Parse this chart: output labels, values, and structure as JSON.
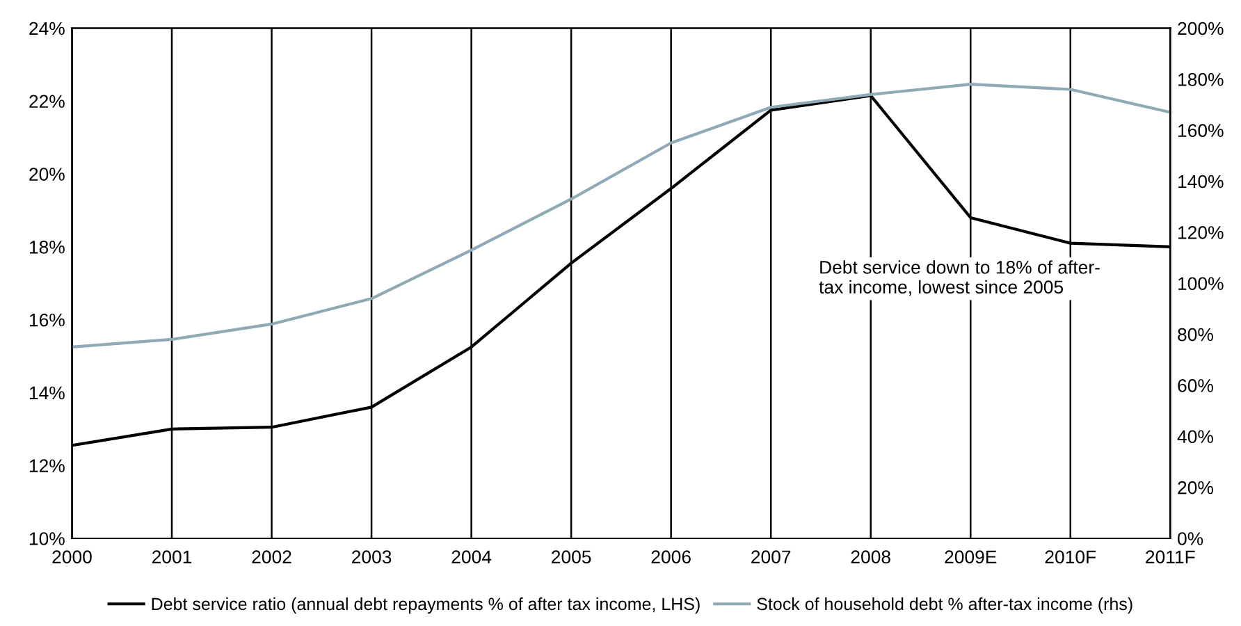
{
  "chart_data": {
    "type": "line",
    "categories": [
      "2000",
      "2001",
      "2002",
      "2003",
      "2004",
      "2005",
      "2006",
      "2007",
      "2008",
      "2009E",
      "2010F",
      "2011F"
    ],
    "series": [
      {
        "name": "Debt service ratio (annual debt repayments % of after tax income, LHS)",
        "color": "#000000",
        "values": [
          12.55,
          13.0,
          13.05,
          13.6,
          15.25,
          17.55,
          19.6,
          21.75,
          22.15,
          18.8,
          18.1,
          18.0
        ]
      },
      {
        "name": "Stock of household debt % after-tax income (rhs)",
        "color": "#8fa9b5",
        "axis": "y2",
        "values": [
          75,
          78,
          84,
          94,
          113,
          133,
          155,
          169,
          174,
          178,
          176,
          167
        ]
      }
    ],
    "ylim": [
      10,
      24
    ],
    "yticks": [
      {
        "value": 10,
        "label": "10%"
      },
      {
        "value": 12,
        "label": "12%"
      },
      {
        "value": 14,
        "label": "14%"
      },
      {
        "value": 16,
        "label": "16%"
      },
      {
        "value": 18,
        "label": "18%"
      },
      {
        "value": 20,
        "label": "20%"
      },
      {
        "value": 22,
        "label": "22%"
      },
      {
        "value": 24,
        "label": "24%"
      }
    ],
    "y2lim": [
      0,
      200
    ],
    "y2ticks": [
      {
        "value": 0,
        "label": "0%"
      },
      {
        "value": 20,
        "label": "20%"
      },
      {
        "value": 40,
        "label": "40%"
      },
      {
        "value": 60,
        "label": "60%"
      },
      {
        "value": 80,
        "label": "80%"
      },
      {
        "value": 100,
        "label": "100%"
      },
      {
        "value": 120,
        "label": "120%"
      },
      {
        "value": 140,
        "label": "140%"
      },
      {
        "value": 160,
        "label": "160%"
      },
      {
        "value": 180,
        "label": "180%"
      },
      {
        "value": 200,
        "label": "200%"
      }
    ],
    "annotations": [
      "Debt service down to 18% of after-\ntax income, lowest since 2005"
    ],
    "grid": "x",
    "legend": "bottom",
    "marker": "none",
    "line_style": "solid"
  }
}
